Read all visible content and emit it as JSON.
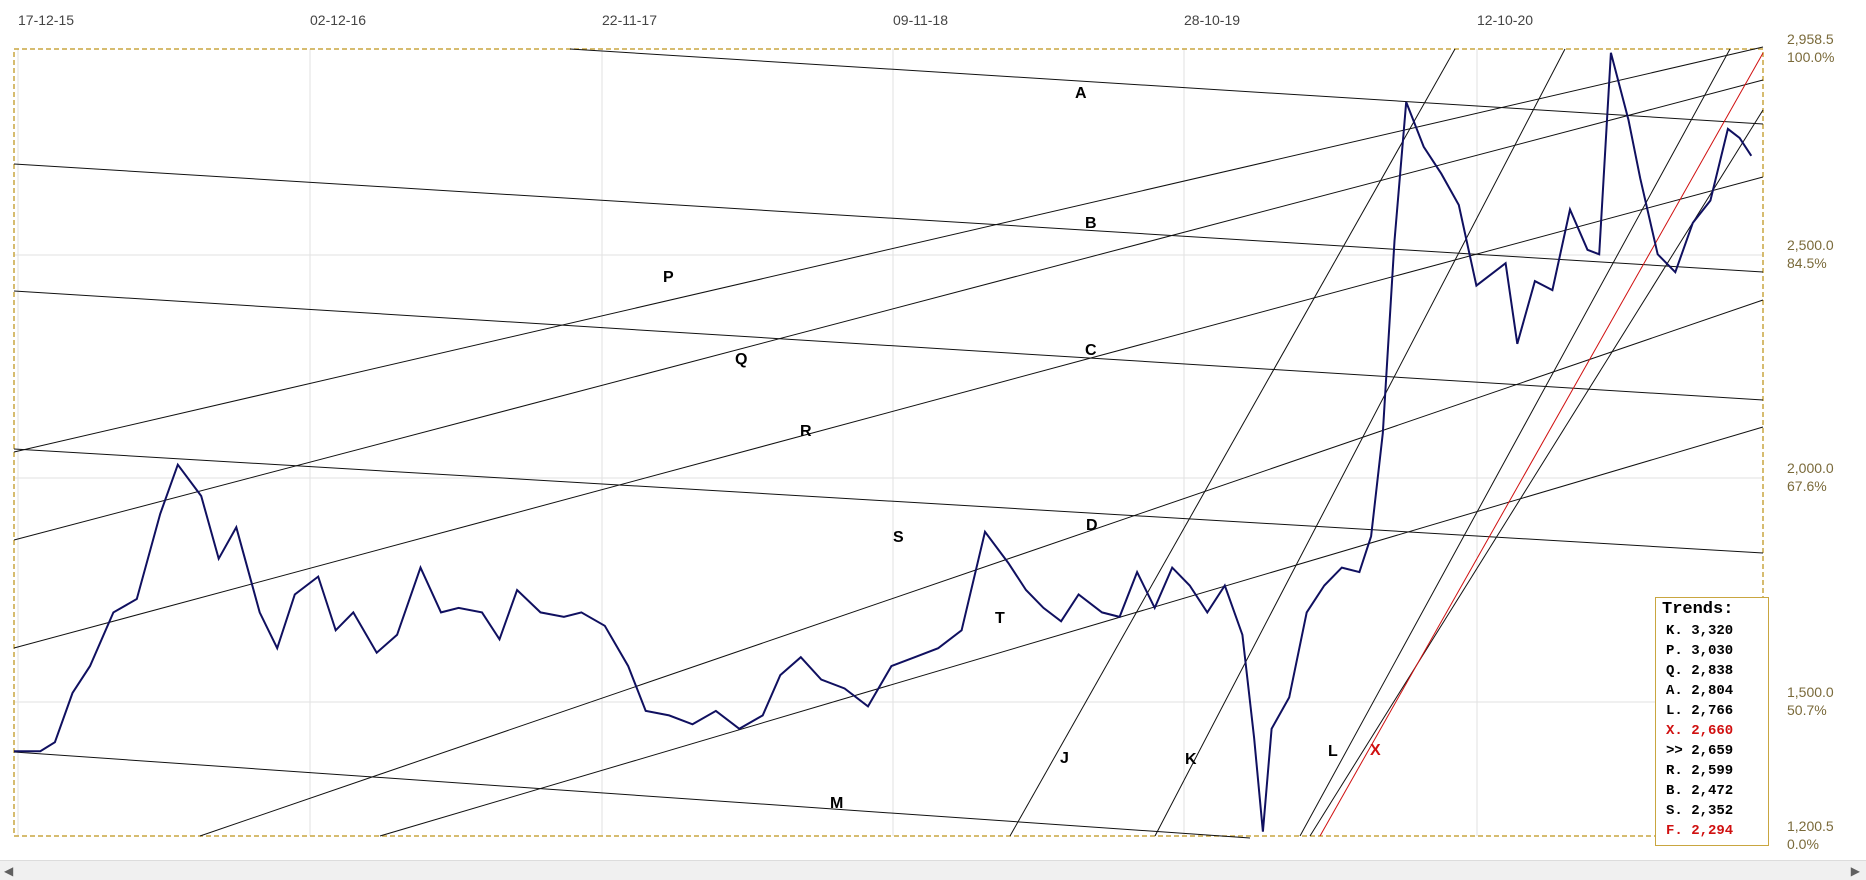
{
  "chart_data": {
    "type": "line",
    "title": "",
    "x_tick_labels": [
      "17-12-15",
      "02-12-16",
      "22-11-17",
      "09-11-18",
      "28-10-19",
      "12-10-20"
    ],
    "y_ticks": [
      {
        "value": "2,958.5",
        "percent": "100.0%"
      },
      {
        "value": "2,500.0",
        "percent": "84.5%"
      },
      {
        "value": "2,000.0",
        "percent": "67.6%"
      },
      {
        "value": "1,500.0",
        "percent": "50.7%"
      },
      {
        "value": "1,200.5",
        "percent": "0.0%"
      }
    ],
    "ylim": [
      1200.5,
      2958.5
    ],
    "x_range_years": [
      2015.96,
      2021.94
    ],
    "grid": true,
    "series": [
      {
        "color": "#101060",
        "x": [
          2015.96,
          2016.05,
          2016.1,
          2016.16,
          2016.22,
          2016.3,
          2016.38,
          2016.46,
          2016.52,
          2016.6,
          2016.66,
          2016.72,
          2016.8,
          2016.86,
          2016.92,
          2017.0,
          2017.06,
          2017.12,
          2017.2,
          2017.27,
          2017.35,
          2017.42,
          2017.48,
          2017.56,
          2017.62,
          2017.68,
          2017.76,
          2017.84,
          2017.9,
          2017.98,
          2018.06,
          2018.12,
          2018.2,
          2018.28,
          2018.36,
          2018.44,
          2018.52,
          2018.58,
          2018.65,
          2018.72,
          2018.8,
          2018.88,
          2018.96,
          2019.04,
          2019.12,
          2019.2,
          2019.28,
          2019.36,
          2019.42,
          2019.48,
          2019.54,
          2019.6,
          2019.68,
          2019.74,
          2019.8,
          2019.86,
          2019.92,
          2019.98,
          2020.04,
          2020.1,
          2020.16,
          2020.2,
          2020.23,
          2020.26,
          2020.32,
          2020.38,
          2020.44,
          2020.5,
          2020.56,
          2020.6,
          2020.64,
          2020.68,
          2020.72,
          2020.78,
          2020.84,
          2020.9,
          2020.96,
          2021.02,
          2021.06,
          2021.1,
          2021.16,
          2021.22,
          2021.28,
          2021.34,
          2021.38,
          2021.42,
          2021.48,
          2021.52,
          2021.58,
          2021.64,
          2021.7,
          2021.76,
          2021.82,
          2021.86,
          2021.9
        ],
        "y": [
          1390,
          1390,
          1410,
          1520,
          1580,
          1700,
          1730,
          1920,
          2030,
          1960,
          1820,
          1890,
          1700,
          1620,
          1740,
          1780,
          1660,
          1700,
          1610,
          1650,
          1800,
          1700,
          1710,
          1700,
          1640,
          1750,
          1700,
          1690,
          1700,
          1670,
          1580,
          1480,
          1470,
          1450,
          1480,
          1440,
          1470,
          1560,
          1600,
          1550,
          1530,
          1490,
          1580,
          1600,
          1620,
          1660,
          1880,
          1810,
          1750,
          1710,
          1680,
          1740,
          1700,
          1690,
          1790,
          1710,
          1800,
          1760,
          1700,
          1760,
          1650,
          1420,
          1210,
          1440,
          1510,
          1700,
          1760,
          1800,
          1790,
          1870,
          2100,
          2530,
          2840,
          2740,
          2680,
          2610,
          2430,
          2460,
          2480,
          2300,
          2440,
          2420,
          2600,
          2510,
          2500,
          2950,
          2800,
          2670,
          2500,
          2460,
          2570,
          2620,
          2780,
          2760,
          2720
        ]
      }
    ],
    "trend_line_labels": [
      "A",
      "B",
      "C",
      "D",
      "P",
      "Q",
      "R",
      "S",
      "T",
      "J",
      "K",
      "L",
      "M",
      "X"
    ],
    "trends_box": {
      "title": "Trends:",
      "rows": [
        {
          "label": "K.",
          "value": "3,320",
          "color": "#000000"
        },
        {
          "label": "P.",
          "value": "3,030",
          "color": "#000000"
        },
        {
          "label": "Q.",
          "value": "2,838",
          "color": "#000000"
        },
        {
          "label": "A.",
          "value": "2,804",
          "color": "#000000"
        },
        {
          "label": "L.",
          "value": "2,766",
          "color": "#000000"
        },
        {
          "label": "X.",
          "value": "2,660",
          "color": "#d01010"
        },
        {
          "label": ">>",
          "value": "2,659",
          "color": "#000000"
        },
        {
          "label": "R.",
          "value": "2,599",
          "color": "#000000"
        },
        {
          "label": "B.",
          "value": "2,472",
          "color": "#000000"
        },
        {
          "label": "S.",
          "value": "2,352",
          "color": "#000000"
        },
        {
          "label": "F.",
          "value": "2,294",
          "color": "#d01010"
        }
      ]
    }
  },
  "colors": {
    "price": "#101060",
    "border": "#c9a640",
    "red_trend": "#d01010",
    "axis_text": "#7a6a3a"
  }
}
